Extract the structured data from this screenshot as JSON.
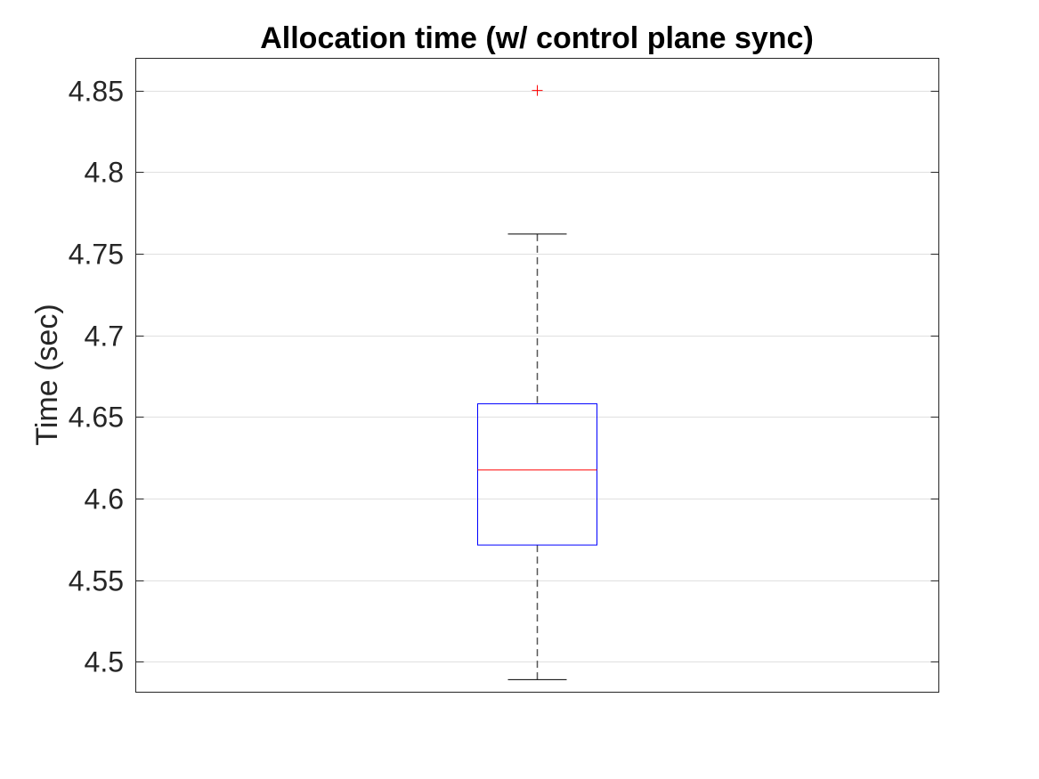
{
  "chart_data": {
    "type": "box",
    "title": "Allocation time (w/ control plane sync)",
    "xlabel": "",
    "ylabel": "Time (sec)",
    "ylim": [
      4.4813,
      4.8697
    ],
    "yticks": [
      4.5,
      4.55,
      4.6,
      4.65,
      4.7,
      4.75,
      4.8,
      4.85
    ],
    "ytick_labels": [
      "4.5",
      "4.55",
      "4.6",
      "4.65",
      "4.7",
      "4.75",
      "4.8",
      "4.85"
    ],
    "grid": true,
    "boxes": [
      {
        "whisker_low": 4.489,
        "q1": 4.5715,
        "median": 4.6175,
        "q3": 4.658,
        "whisker_high": 4.762,
        "outliers": [
          4.85
        ]
      }
    ],
    "colors": {
      "box": "#0000ff",
      "median": "#ff0000",
      "whisker": "#000000",
      "outlier": "#ff0000",
      "grid": "#e0e0e0",
      "axis": "#262626"
    }
  }
}
